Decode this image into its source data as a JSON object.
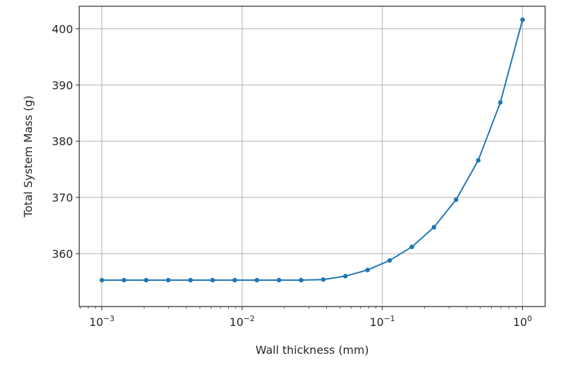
{
  "chart_data": {
    "type": "line",
    "title": "",
    "xlabel": "Wall thickness (mm)",
    "ylabel": "Total System Mass (g)",
    "x_scale": "log",
    "xlim": [
      0.00069,
      1.45
    ],
    "ylim": [
      350.6,
      404.0
    ],
    "grid": true,
    "legend": "none",
    "x_ticks": [
      {
        "value": 0.001,
        "base": "10",
        "exp": "−3"
      },
      {
        "value": 0.01,
        "base": "10",
        "exp": "−2"
      },
      {
        "value": 0.1,
        "base": "10",
        "exp": "−1"
      },
      {
        "value": 1,
        "base": "10",
        "exp": "0"
      }
    ],
    "y_ticks": [
      360,
      370,
      380,
      390,
      400
    ],
    "series": [
      {
        "color": "#1f77b4",
        "marker": "circle",
        "x": [
          0.001,
          0.001438,
          0.002069,
          0.002976,
          0.004281,
          0.006158,
          0.008859,
          0.012743,
          0.01833,
          0.026367,
          0.037927,
          0.054556,
          0.078476,
          0.112884,
          0.162378,
          0.233572,
          0.335982,
          0.483293,
          0.695193,
          1.0
        ],
        "y": [
          355.3,
          355.3,
          355.3,
          355.3,
          355.3,
          355.3,
          355.3,
          355.3,
          355.3,
          355.3,
          355.4,
          356.0,
          357.1,
          358.8,
          361.2,
          364.7,
          369.6,
          376.6,
          386.9,
          401.6
        ]
      }
    ]
  }
}
